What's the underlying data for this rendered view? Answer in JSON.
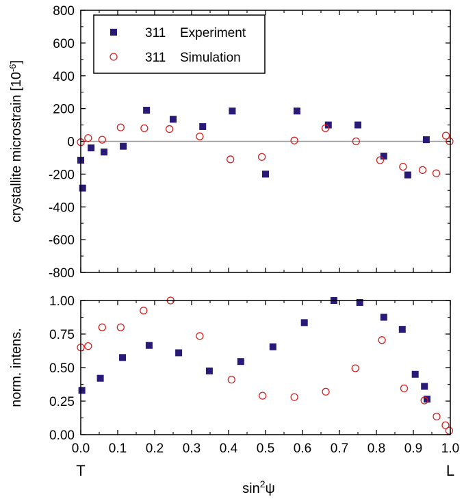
{
  "chart_data": [
    {
      "type": "scatter",
      "ylabel": "crystallite microstrain [10",
      "ylabel_exponent": "-6",
      "ylabel_suffix": "]",
      "xlim": [
        0.0,
        1.0
      ],
      "ylim": [
        -800,
        800
      ],
      "yticks": [
        -800,
        -600,
        -400,
        -200,
        0,
        200,
        400,
        600,
        800
      ],
      "ytick_labels": [
        "-800",
        "-600",
        "-400",
        "-200",
        "0",
        "200",
        "400",
        "600",
        "800"
      ],
      "zero_line": true,
      "legend": {
        "placement": "top-left",
        "entries": [
          {
            "marker": "filled-square",
            "code": "311",
            "label": "Experiment"
          },
          {
            "marker": "open-circle",
            "code": "311",
            "label": "Simulation"
          }
        ]
      },
      "series": [
        {
          "name": "311 Experiment",
          "marker": "filled-square",
          "color": "#2a1a78",
          "points": [
            [
              0.0,
              -115
            ],
            [
              0.005,
              -285
            ],
            [
              0.028,
              -40
            ],
            [
              0.063,
              -65
            ],
            [
              0.115,
              -30
            ],
            [
              0.178,
              190
            ],
            [
              0.25,
              135
            ],
            [
              0.33,
              90
            ],
            [
              0.41,
              185
            ],
            [
              0.5,
              -200
            ],
            [
              0.585,
              185
            ],
            [
              0.67,
              100
            ],
            [
              0.75,
              100
            ],
            [
              0.82,
              -90
            ],
            [
              0.885,
              -205
            ],
            [
              0.935,
              10
            ]
          ]
        },
        {
          "name": "311 Simulation",
          "marker": "open-circle",
          "color": "#d42020",
          "points": [
            [
              0.0,
              -5
            ],
            [
              0.02,
              20
            ],
            [
              0.058,
              10
            ],
            [
              0.108,
              85
            ],
            [
              0.172,
              80
            ],
            [
              0.24,
              75
            ],
            [
              0.322,
              30
            ],
            [
              0.405,
              -110
            ],
            [
              0.49,
              -95
            ],
            [
              0.578,
              5
            ],
            [
              0.662,
              80
            ],
            [
              0.745,
              0
            ],
            [
              0.81,
              -115
            ],
            [
              0.872,
              -155
            ],
            [
              0.925,
              -175
            ],
            [
              0.962,
              -195
            ],
            [
              0.988,
              35
            ],
            [
              0.998,
              0
            ]
          ]
        }
      ]
    },
    {
      "type": "scatter",
      "xlabel": "sin",
      "xlabel_exponent": "2",
      "xlabel_symbol": "ψ",
      "ylabel": "norm. intens.",
      "xlim": [
        0.0,
        1.0
      ],
      "ylim": [
        0.0,
        1.0
      ],
      "xticks": [
        0.0,
        0.1,
        0.2,
        0.3,
        0.4,
        0.5,
        0.6,
        0.7,
        0.8,
        0.9,
        1.0
      ],
      "xtick_labels": [
        "0.0",
        "0.1",
        "0.2",
        "0.3",
        "0.4",
        "0.5",
        "0.6",
        "0.7",
        "0.8",
        "0.9",
        "1.0"
      ],
      "yticks": [
        0.0,
        0.25,
        0.5,
        0.75,
        1.0
      ],
      "ytick_labels": [
        "0.00",
        "0.25",
        "0.50",
        "0.75",
        "1.00"
      ],
      "x_end_labels": {
        "left": "T",
        "right": "L"
      },
      "series": [
        {
          "name": "311 Experiment",
          "marker": "filled-square",
          "color": "#2a1a78",
          "points": [
            [
              0.003,
              0.33
            ],
            [
              0.053,
              0.42
            ],
            [
              0.113,
              0.575
            ],
            [
              0.185,
              0.665
            ],
            [
              0.265,
              0.61
            ],
            [
              0.348,
              0.475
            ],
            [
              0.433,
              0.545
            ],
            [
              0.52,
              0.655
            ],
            [
              0.605,
              0.835
            ],
            [
              0.685,
              1.0
            ],
            [
              0.755,
              0.985
            ],
            [
              0.82,
              0.875
            ],
            [
              0.87,
              0.785
            ],
            [
              0.905,
              0.45
            ],
            [
              0.93,
              0.36
            ],
            [
              0.937,
              0.265
            ]
          ]
        },
        {
          "name": "311 Simulation",
          "marker": "open-circle",
          "color": "#d42020",
          "points": [
            [
              0.0,
              0.65
            ],
            [
              0.02,
              0.66
            ],
            [
              0.058,
              0.8
            ],
            [
              0.108,
              0.8
            ],
            [
              0.17,
              0.925
            ],
            [
              0.243,
              1.0
            ],
            [
              0.322,
              0.735
            ],
            [
              0.408,
              0.41
            ],
            [
              0.492,
              0.29
            ],
            [
              0.578,
              0.28
            ],
            [
              0.663,
              0.32
            ],
            [
              0.743,
              0.495
            ],
            [
              0.815,
              0.705
            ],
            [
              0.875,
              0.345
            ],
            [
              0.93,
              0.255
            ],
            [
              0.963,
              0.135
            ],
            [
              0.987,
              0.07
            ],
            [
              0.997,
              0.03
            ]
          ]
        }
      ]
    }
  ]
}
